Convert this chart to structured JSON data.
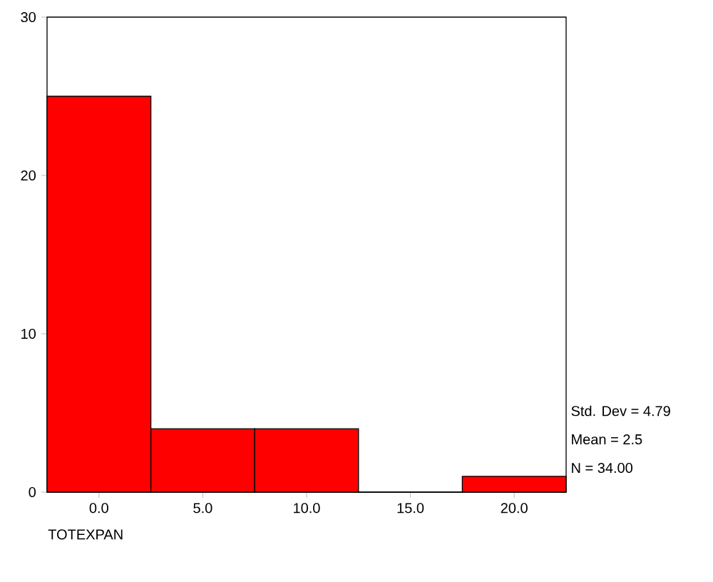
{
  "chart_data": {
    "type": "histogram",
    "bins": [
      -2.5,
      2.5,
      7.5,
      12.5,
      17.5,
      22.5
    ],
    "values": [
      25,
      4,
      4,
      0,
      1
    ],
    "color": "#ff0000",
    "xlabel": "TOTEXPAN",
    "xlim": [
      -2.5,
      22.5
    ],
    "ylim": [
      0,
      30
    ],
    "xticks": [
      {
        "value": 0,
        "label": "0.0"
      },
      {
        "value": 5,
        "label": "5.0"
      },
      {
        "value": 10,
        "label": "10.0"
      },
      {
        "value": 15,
        "label": "15.0"
      },
      {
        "value": 20,
        "label": "20.0"
      }
    ],
    "yticks": [
      0,
      10,
      20,
      30
    ],
    "annotations": [
      "Std. Dev = 4.79",
      "Mean = 2.5",
      "N = 34.00"
    ],
    "grid": false
  }
}
